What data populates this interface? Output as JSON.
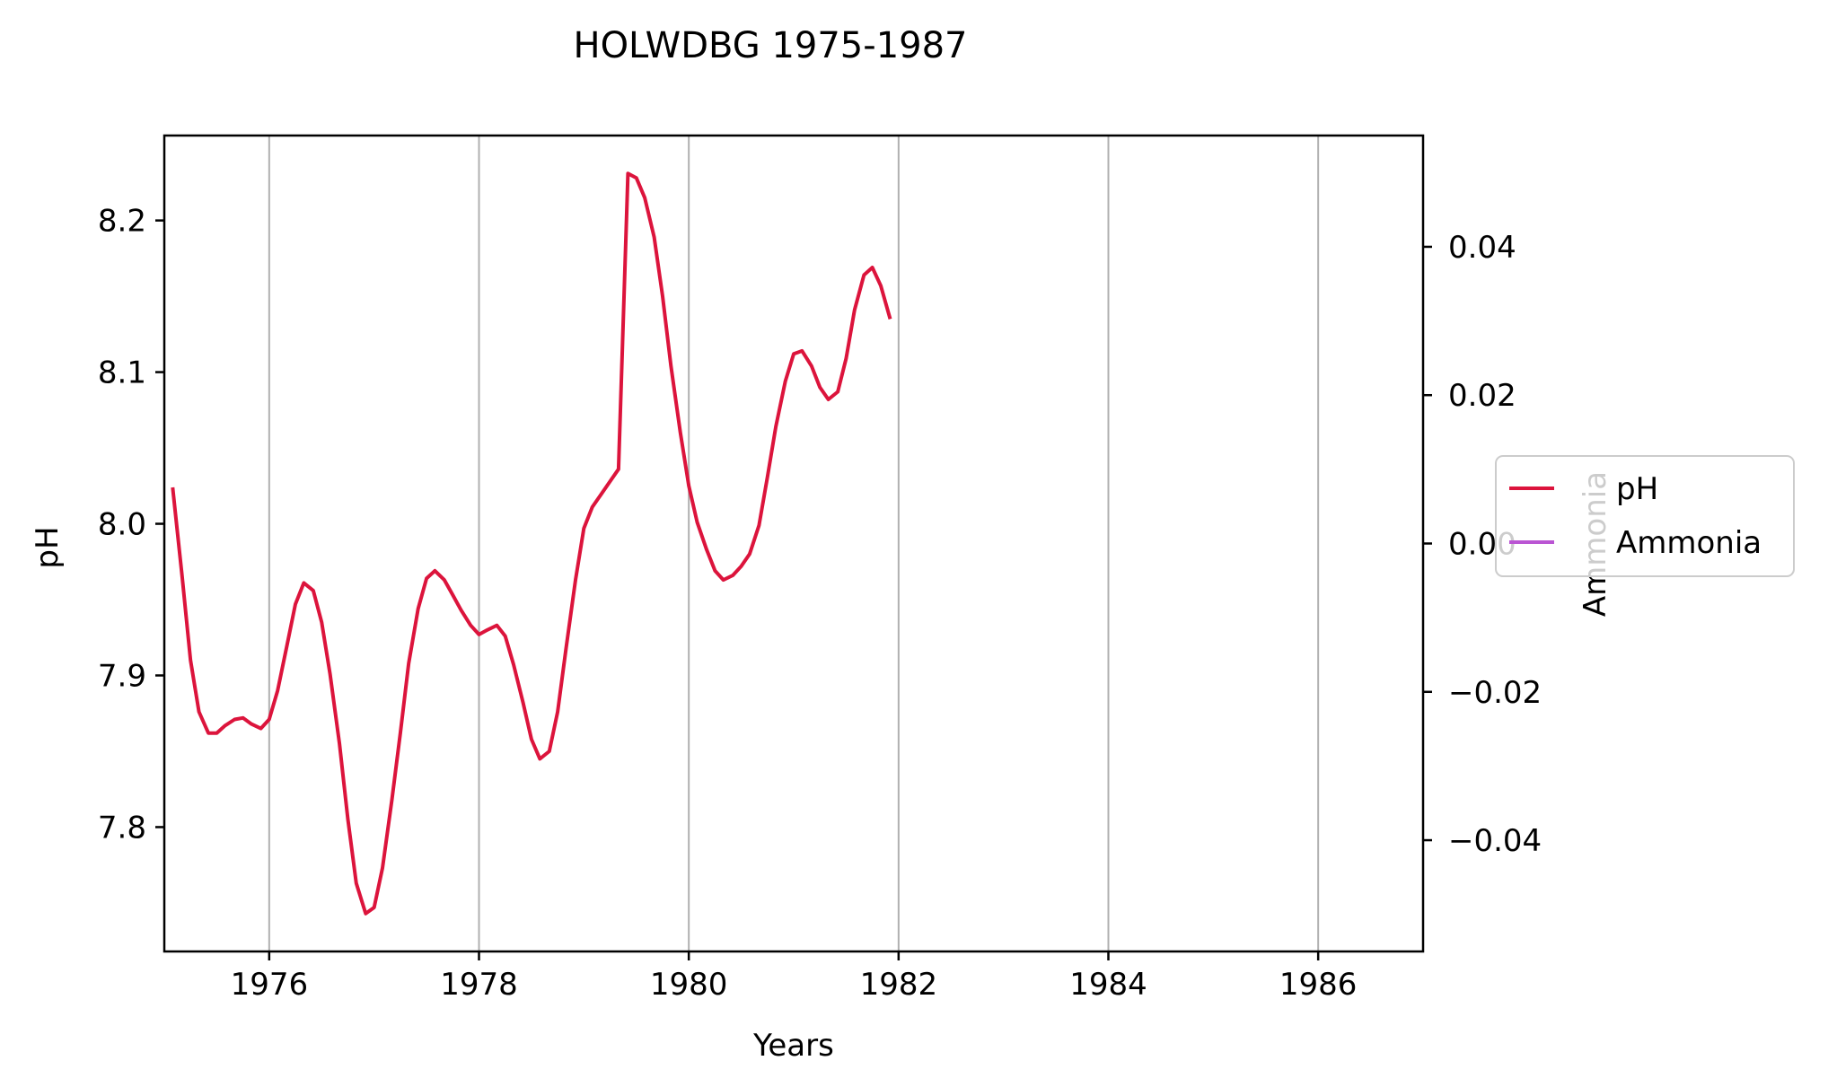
{
  "chart_data": {
    "type": "line",
    "title": "HOLWDBG 1975-1987",
    "xlabel": "Years",
    "ylabel": "pH",
    "y2label": "Ammonia",
    "xlim": [
      1975.0,
      1987.0
    ],
    "ylim": [
      7.718,
      8.256
    ],
    "y2lim": [
      -0.055,
      0.055
    ],
    "grid": "vertical",
    "legend_position": "right",
    "x_ticks": [
      1976,
      1978,
      1980,
      1982,
      1984,
      1986
    ],
    "x_tick_labels": [
      "1976",
      "1978",
      "1980",
      "1982",
      "1984",
      "1986"
    ],
    "y_ticks": [
      7.8,
      7.9,
      8.0,
      8.1,
      8.2
    ],
    "y_tick_labels": [
      "7.8",
      "7.9",
      "8.0",
      "8.1",
      "8.2"
    ],
    "y2_ticks": [
      -0.04,
      -0.02,
      0.0,
      0.02,
      0.04
    ],
    "y2_tick_labels": [
      "−0.04",
      "−0.02",
      "0.00",
      "0.02",
      "0.04"
    ],
    "series": [
      {
        "name": "pH",
        "color": "#dc143c",
        "axis": "left",
        "x": [
          1975.08,
          1975.17,
          1975.25,
          1975.33,
          1975.42,
          1975.5,
          1975.58,
          1975.67,
          1975.75,
          1975.83,
          1975.92,
          1976.0,
          1976.08,
          1976.17,
          1976.25,
          1976.33,
          1976.42,
          1976.5,
          1976.58,
          1976.67,
          1976.75,
          1976.83,
          1976.92,
          1977.0,
          1977.08,
          1977.17,
          1977.25,
          1977.33,
          1977.42,
          1977.5,
          1977.58,
          1977.67,
          1977.75,
          1977.83,
          1977.92,
          1978.0,
          1978.08,
          1978.17,
          1978.25,
          1978.33,
          1978.42,
          1978.5,
          1978.58,
          1978.67,
          1978.75,
          1978.83,
          1978.92,
          1979.0,
          1979.08,
          1979.17,
          1979.25,
          1979.33,
          1979.42,
          1979.5,
          1979.58,
          1979.67,
          1979.75,
          1979.83,
          1979.92,
          1980.0,
          1980.08,
          1980.17,
          1980.25,
          1980.33,
          1980.42,
          1980.5,
          1980.58,
          1980.67,
          1980.75,
          1980.83,
          1980.92,
          1981.0,
          1981.08,
          1981.17,
          1981.25,
          1981.33,
          1981.42,
          1981.5,
          1981.58,
          1981.67,
          1981.75,
          1981.83,
          1981.92
        ],
        "values": [
          8.024,
          7.965,
          7.91,
          7.876,
          7.862,
          7.862,
          7.867,
          7.871,
          7.872,
          7.868,
          7.865,
          7.871,
          7.89,
          7.92,
          7.947,
          7.961,
          7.956,
          7.935,
          7.901,
          7.855,
          7.805,
          7.763,
          7.743,
          7.747,
          7.773,
          7.818,
          7.862,
          7.908,
          7.944,
          7.964,
          7.969,
          7.963,
          7.953,
          7.943,
          7.933,
          7.927,
          7.93,
          7.933,
          7.926,
          7.907,
          7.882,
          7.858,
          7.845,
          7.85,
          7.876,
          7.918,
          7.963,
          7.997,
          8.011,
          8.02,
          8.028,
          8.036,
          8.231,
          8.228,
          8.215,
          8.189,
          8.15,
          8.104,
          8.06,
          8.025,
          8.001,
          7.983,
          7.969,
          7.963,
          7.966,
          7.972,
          7.98,
          7.999,
          8.031,
          8.064,
          8.094,
          8.112,
          8.114,
          8.104,
          8.09,
          8.082,
          8.087,
          8.109,
          8.141,
          8.164,
          8.169,
          8.157,
          8.135
        ]
      },
      {
        "name": "Ammonia",
        "color": "#ba55d3",
        "axis": "right",
        "x": [],
        "values": []
      }
    ]
  }
}
